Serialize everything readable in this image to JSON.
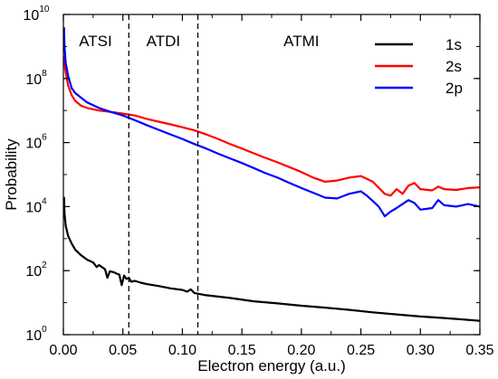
{
  "chart_data": {
    "type": "line",
    "xlabel": "Electron energy (a.u.)",
    "ylabel": "Probability",
    "xlim": [
      0,
      0.35
    ],
    "ylim": [
      1,
      10000000000.0
    ],
    "yscale": "log",
    "grid": false,
    "legend": "top-right",
    "x_ticks": [
      "0.00",
      "0.05",
      "0.10",
      "0.15",
      "0.20",
      "0.25",
      "0.30",
      "0.35"
    ],
    "y_ticks": [
      {
        "base": "10",
        "exp": "0",
        "value": 1
      },
      {
        "base": "10",
        "exp": "2",
        "value": 100
      },
      {
        "base": "10",
        "exp": "4",
        "value": 10000
      },
      {
        "base": "10",
        "exp": "6",
        "value": 1000000
      },
      {
        "base": "10",
        "exp": "8",
        "value": 100000000
      },
      {
        "base": "10",
        "exp": "10",
        "value": 10000000000
      }
    ],
    "regions": [
      {
        "label": "ATSI",
        "x_center": 0.027
      },
      {
        "label": "ATDI",
        "x_center": 0.084
      },
      {
        "label": "ATMI",
        "x_center": 0.2
      }
    ],
    "dividers": [
      0.055,
      0.113
    ],
    "series": [
      {
        "name": "1s",
        "color": "#000000",
        "points": [
          [
            0.0005,
            20000
          ],
          [
            0.001,
            6000
          ],
          [
            0.002,
            2500
          ],
          [
            0.004,
            1200
          ],
          [
            0.007,
            700
          ],
          [
            0.01,
            450
          ],
          [
            0.015,
            300
          ],
          [
            0.02,
            220
          ],
          [
            0.025,
            180
          ],
          [
            0.028,
            130
          ],
          [
            0.03,
            150
          ],
          [
            0.033,
            125
          ],
          [
            0.035,
            110
          ],
          [
            0.037,
            60
          ],
          [
            0.039,
            95
          ],
          [
            0.042,
            90
          ],
          [
            0.045,
            80
          ],
          [
            0.047,
            75
          ],
          [
            0.049,
            35
          ],
          [
            0.051,
            70
          ],
          [
            0.053,
            55
          ],
          [
            0.055,
            60
          ],
          [
            0.057,
            45
          ],
          [
            0.06,
            48
          ],
          [
            0.065,
            42
          ],
          [
            0.07,
            38
          ],
          [
            0.08,
            33
          ],
          [
            0.09,
            28
          ],
          [
            0.1,
            25
          ],
          [
            0.104,
            22
          ],
          [
            0.107,
            26
          ],
          [
            0.11,
            20
          ],
          [
            0.12,
            17
          ],
          [
            0.14,
            14
          ],
          [
            0.16,
            11
          ],
          [
            0.18,
            9.5
          ],
          [
            0.2,
            8
          ],
          [
            0.22,
            7
          ],
          [
            0.24,
            6
          ],
          [
            0.26,
            5
          ],
          [
            0.28,
            4.3
          ],
          [
            0.3,
            3.7
          ],
          [
            0.32,
            3.3
          ],
          [
            0.34,
            2.9
          ],
          [
            0.35,
            2.7
          ]
        ]
      },
      {
        "name": "2s",
        "color": "#ff0000",
        "points": [
          [
            0.0005,
            500000000.0
          ],
          [
            0.001,
            300000000.0
          ],
          [
            0.002,
            150000000.0
          ],
          [
            0.004,
            60000000.0
          ],
          [
            0.007,
            30000000.0
          ],
          [
            0.01,
            20000000.0
          ],
          [
            0.015,
            14000000.0
          ],
          [
            0.02,
            12000000.0
          ],
          [
            0.03,
            10000000.0
          ],
          [
            0.04,
            9000000.0
          ],
          [
            0.05,
            8000000.0
          ],
          [
            0.06,
            7000000.0
          ],
          [
            0.07,
            5500000.0
          ],
          [
            0.08,
            4500000.0
          ],
          [
            0.09,
            3700000.0
          ],
          [
            0.1,
            3000000.0
          ],
          [
            0.11,
            2400000.0
          ],
          [
            0.12,
            1800000.0
          ],
          [
            0.13,
            1300000.0
          ],
          [
            0.14,
            900000.0
          ],
          [
            0.15,
            650000.0
          ],
          [
            0.16,
            460000.0
          ],
          [
            0.17,
            330000.0
          ],
          [
            0.18,
            240000.0
          ],
          [
            0.19,
            170000.0
          ],
          [
            0.2,
            120000.0
          ],
          [
            0.21,
            80000.0
          ],
          [
            0.22,
            60000.0
          ],
          [
            0.23,
            65000.0
          ],
          [
            0.24,
            80000.0
          ],
          [
            0.25,
            90000.0
          ],
          [
            0.26,
            60000.0
          ],
          [
            0.27,
            25000.0
          ],
          [
            0.275,
            22000.0
          ],
          [
            0.28,
            35000.0
          ],
          [
            0.285,
            25000.0
          ],
          [
            0.29,
            45000.0
          ],
          [
            0.295,
            55000.0
          ],
          [
            0.3,
            35000.0
          ],
          [
            0.31,
            32000.0
          ],
          [
            0.315,
            42000.0
          ],
          [
            0.32,
            35000.0
          ],
          [
            0.33,
            33000.0
          ],
          [
            0.34,
            38000.0
          ],
          [
            0.35,
            40000.0
          ]
        ]
      },
      {
        "name": "2p",
        "color": "#0000ff",
        "points": [
          [
            0.0005,
            4000000000.0
          ],
          [
            0.001,
            1000000000.0
          ],
          [
            0.002,
            300000000.0
          ],
          [
            0.004,
            120000000.0
          ],
          [
            0.007,
            50000000.0
          ],
          [
            0.01,
            35000000.0
          ],
          [
            0.015,
            25000000.0
          ],
          [
            0.02,
            18000000.0
          ],
          [
            0.03,
            12000000.0
          ],
          [
            0.04,
            9000000.0
          ],
          [
            0.05,
            7000000.0
          ],
          [
            0.06,
            5000000.0
          ],
          [
            0.07,
            3500000.0
          ],
          [
            0.08,
            2500000.0
          ],
          [
            0.09,
            1800000.0
          ],
          [
            0.1,
            1300000.0
          ],
          [
            0.11,
            900000.0
          ],
          [
            0.12,
            650000.0
          ],
          [
            0.13,
            450000.0
          ],
          [
            0.14,
            320000.0
          ],
          [
            0.15,
            230000.0
          ],
          [
            0.16,
            160000.0
          ],
          [
            0.17,
            110000.0
          ],
          [
            0.18,
            80000.0
          ],
          [
            0.19,
            55000.0
          ],
          [
            0.2,
            38000.0
          ],
          [
            0.21,
            27000.0
          ],
          [
            0.22,
            19000.0
          ],
          [
            0.23,
            18000.0
          ],
          [
            0.24,
            25000.0
          ],
          [
            0.25,
            30000.0
          ],
          [
            0.255,
            22000.0
          ],
          [
            0.26,
            15000.0
          ],
          [
            0.265,
            10000.0
          ],
          [
            0.27,
            5000.0
          ],
          [
            0.275,
            7000.0
          ],
          [
            0.28,
            9000.0
          ],
          [
            0.285,
            12000.0
          ],
          [
            0.29,
            16000.0
          ],
          [
            0.295,
            13000.0
          ],
          [
            0.3,
            8000.0
          ],
          [
            0.31,
            9000.0
          ],
          [
            0.315,
            16000.0
          ],
          [
            0.32,
            11000.0
          ],
          [
            0.33,
            10000.0
          ],
          [
            0.34,
            12000.0
          ],
          [
            0.35,
            10000.0
          ]
        ]
      }
    ]
  }
}
